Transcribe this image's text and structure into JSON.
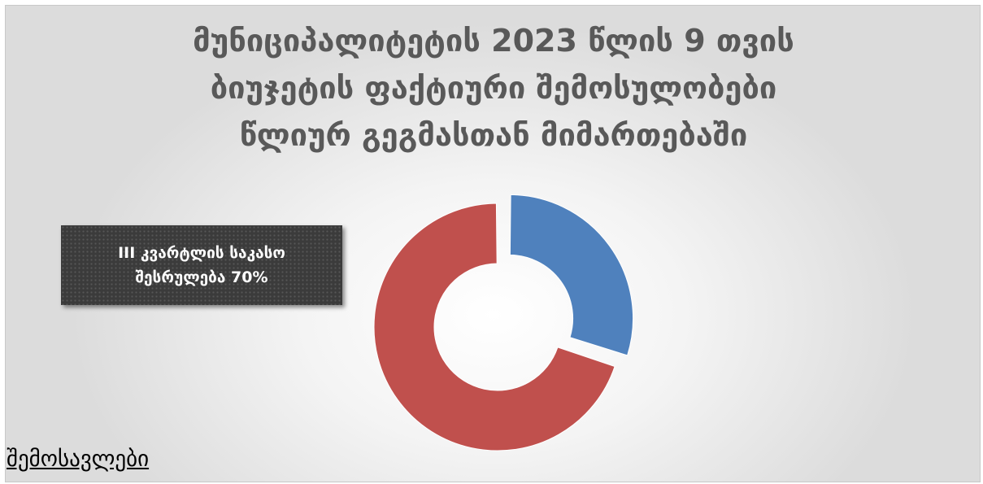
{
  "chart_data": {
    "type": "pie",
    "variant": "donut",
    "title": "მუნიციპალიტეტის 2023 წლის 9 თვის ბიუჯეტის ფაქტიური შემოსულობები წლიურ გეგმასთან მიმართებაში",
    "title_lines": [
      "მუნიციპალიტეტის 2023 წლის 9 თვის",
      "ბიუჯეტის ფაქტიური შემოსულობები",
      "წლიურ გეგმასთან მიმართებაში"
    ],
    "slices": [
      {
        "value": 30,
        "color": "#4f81bd",
        "exploded": true
      },
      {
        "value": 70,
        "color": "#c0504d",
        "exploded": false
      }
    ],
    "annotation": "III კვარტლის საკასო შესრულება 70%"
  },
  "footer": {
    "link_label": "შემოსავლები"
  }
}
